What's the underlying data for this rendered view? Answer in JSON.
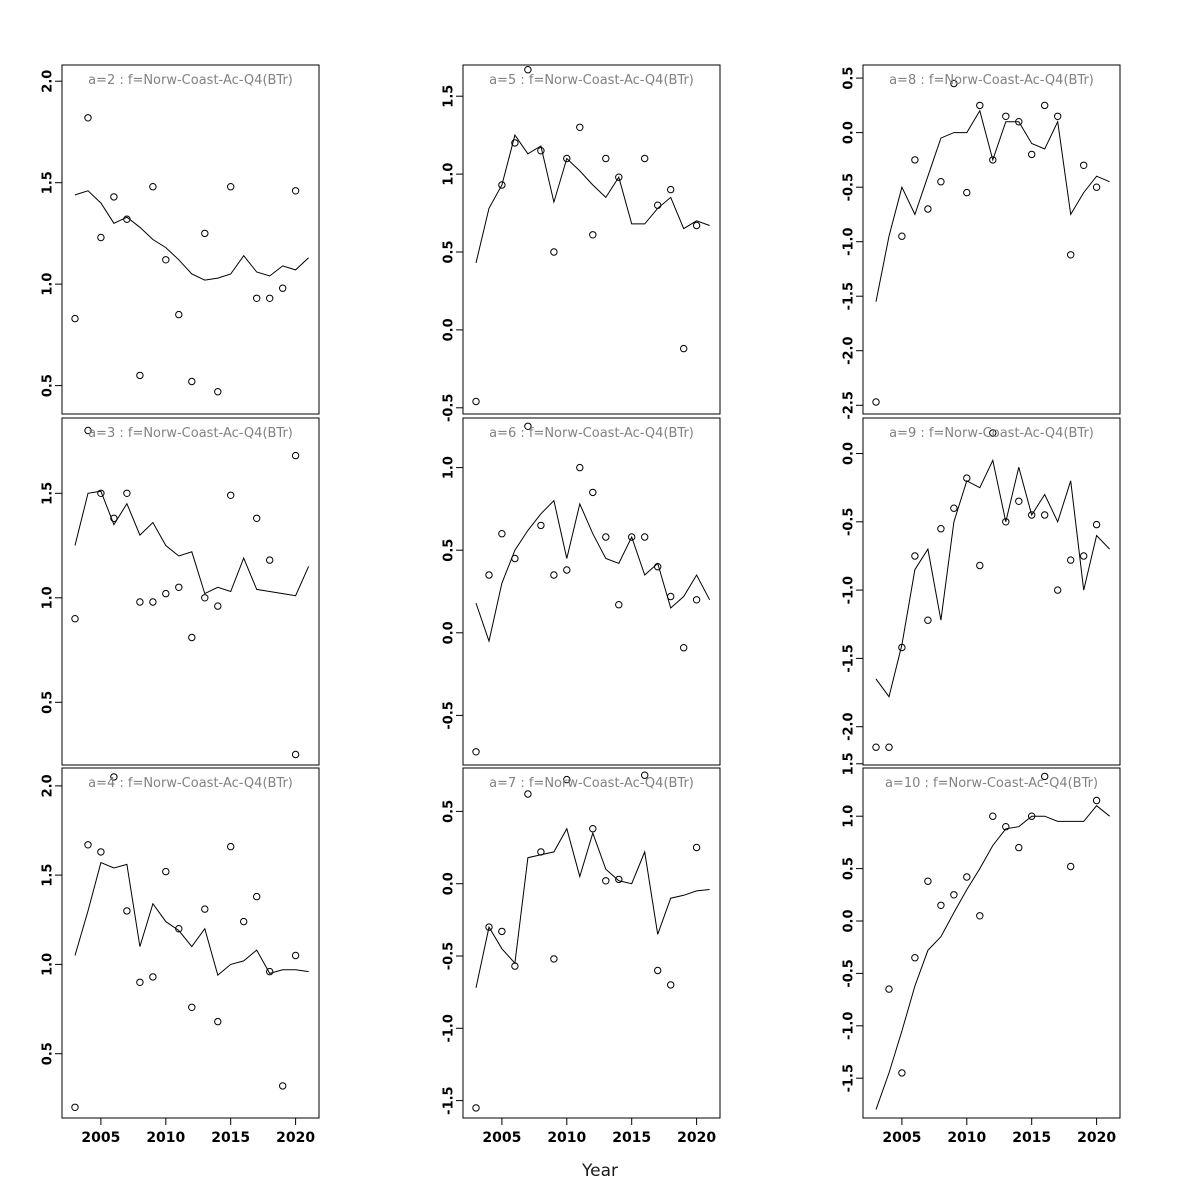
{
  "figure": {
    "xlabel": "Year",
    "x_ticks": [
      2005,
      2010,
      2015,
      2020
    ],
    "x_range": [
      2002.0,
      2021.8
    ],
    "line_years": [
      2003,
      2004,
      2005,
      2006,
      2007,
      2008,
      2009,
      2010,
      2011,
      2012,
      2013,
      2014,
      2015,
      2016,
      2017,
      2018,
      2019,
      2020,
      2021
    ],
    "grid": {
      "rows": 3,
      "cols": 3,
      "fill_order": "column-major"
    },
    "colors": {
      "line": "#000000",
      "point_stroke": "#000000",
      "title": "#828282",
      "border": "#000000"
    }
  },
  "chart_data": [
    {
      "id": "a2",
      "type": "scatter+line",
      "title": "a=2 : f=Norw-Coast-Ac-Q4(BTr)",
      "y_ticks": [
        0.5,
        1.0,
        1.5,
        2.0
      ],
      "y_range": [
        0.36,
        2.08
      ],
      "points": {
        "x": [
          2003,
          2004,
          2005,
          2006,
          2007,
          2008,
          2009,
          2010,
          2011,
          2012,
          2013,
          2014,
          2015,
          2017,
          2018,
          2019,
          2020
        ],
        "y": [
          0.83,
          1.82,
          1.23,
          1.43,
          1.32,
          0.55,
          1.48,
          1.12,
          0.85,
          0.52,
          1.25,
          0.47,
          1.48,
          0.93,
          0.93,
          0.98,
          1.46
        ]
      },
      "line": {
        "y": [
          1.44,
          1.46,
          1.4,
          1.3,
          1.33,
          1.28,
          1.22,
          1.18,
          1.12,
          1.05,
          1.02,
          1.03,
          1.05,
          1.14,
          1.06,
          1.04,
          1.09,
          1.07,
          1.13
        ]
      }
    },
    {
      "id": "a3",
      "type": "scatter+line",
      "title": "a=3 : f=Norw-Coast-Ac-Q4(BTr)",
      "y_ticks": [
        0.5,
        1.0,
        1.5
      ],
      "y_range": [
        0.2,
        1.86
      ],
      "points": {
        "x": [
          2003,
          2004,
          2005,
          2006,
          2007,
          2008,
          2009,
          2010,
          2011,
          2012,
          2013,
          2014,
          2015,
          2017,
          2018,
          2020,
          2020
        ],
        "y": [
          0.9,
          1.8,
          1.5,
          1.38,
          1.5,
          0.98,
          0.98,
          1.02,
          1.05,
          0.81,
          1.0,
          0.96,
          1.49,
          1.38,
          1.18,
          1.68,
          0.25
        ]
      },
      "line": {
        "y": [
          1.25,
          1.5,
          1.51,
          1.35,
          1.45,
          1.3,
          1.36,
          1.25,
          1.2,
          1.22,
          1.02,
          1.05,
          1.03,
          1.19,
          1.04,
          1.03,
          1.02,
          1.01,
          1.15
        ]
      }
    },
    {
      "id": "a4",
      "type": "scatter+line",
      "title": "a=4 : f=Norw-Coast-Ac-Q4(BTr)",
      "y_ticks": [
        0.5,
        1.0,
        1.5,
        2.0
      ],
      "y_range": [
        0.14,
        2.1
      ],
      "points": {
        "x": [
          2003,
          2004,
          2005,
          2006,
          2007,
          2008,
          2009,
          2010,
          2011,
          2012,
          2013,
          2014,
          2015,
          2016,
          2017,
          2018,
          2019,
          2020
        ],
        "y": [
          0.2,
          1.67,
          1.63,
          2.05,
          1.3,
          0.9,
          0.93,
          1.52,
          1.2,
          0.76,
          1.31,
          0.68,
          1.66,
          1.24,
          1.38,
          0.96,
          0.32,
          1.05
        ]
      },
      "line": {
        "y": [
          1.05,
          1.3,
          1.57,
          1.54,
          1.56,
          1.1,
          1.34,
          1.24,
          1.19,
          1.1,
          1.2,
          0.94,
          1.0,
          1.02,
          1.08,
          0.95,
          0.97,
          0.97,
          0.96
        ]
      }
    },
    {
      "id": "a5",
      "type": "scatter+line",
      "title": "a=5 : f=Norw-Coast-Ac-Q4(BTr)",
      "y_ticks": [
        -0.5,
        0.0,
        0.5,
        1.0,
        1.5
      ],
      "y_range": [
        -0.54,
        1.7
      ],
      "points": {
        "x": [
          2003,
          2005,
          2006,
          2007,
          2008,
          2009,
          2010,
          2011,
          2012,
          2013,
          2014,
          2016,
          2017,
          2018,
          2019,
          2020
        ],
        "y": [
          -0.46,
          0.93,
          1.2,
          1.67,
          1.15,
          0.5,
          1.1,
          1.3,
          0.61,
          1.1,
          0.98,
          1.1,
          0.8,
          0.9,
          -0.12,
          0.67
        ]
      },
      "line": {
        "y": [
          0.43,
          0.78,
          0.93,
          1.25,
          1.13,
          1.18,
          0.82,
          1.1,
          1.02,
          0.93,
          0.85,
          0.98,
          0.68,
          0.68,
          0.78,
          0.85,
          0.65,
          0.7,
          0.67
        ]
      }
    },
    {
      "id": "a6",
      "type": "scatter+line",
      "title": "a=6 : f=Norw-Coast-Ac-Q4(BTr)",
      "y_ticks": [
        -0.5,
        0.0,
        0.5,
        1.0
      ],
      "y_range": [
        -0.8,
        1.3
      ],
      "points": {
        "x": [
          2003,
          2004,
          2005,
          2006,
          2007,
          2008,
          2009,
          2010,
          2011,
          2012,
          2013,
          2014,
          2015,
          2016,
          2017,
          2018,
          2019,
          2020
        ],
        "y": [
          -0.72,
          0.35,
          0.6,
          0.45,
          1.25,
          0.65,
          0.35,
          0.38,
          1.0,
          0.85,
          0.58,
          0.17,
          0.58,
          0.58,
          0.4,
          0.22,
          -0.09,
          0.2
        ]
      },
      "line": {
        "y": [
          0.18,
          -0.05,
          0.3,
          0.5,
          0.62,
          0.72,
          0.8,
          0.45,
          0.78,
          0.6,
          0.45,
          0.42,
          0.58,
          0.35,
          0.42,
          0.15,
          0.22,
          0.35,
          0.2
        ]
      }
    },
    {
      "id": "a7",
      "type": "scatter+line",
      "title": "a=7 : f=Norw-Coast-Ac-Q4(BTr)",
      "y_ticks": [
        -1.5,
        -1.0,
        -0.5,
        0.0,
        0.5
      ],
      "y_range": [
        -1.62,
        0.8
      ],
      "points": {
        "x": [
          2003,
          2004,
          2005,
          2006,
          2007,
          2008,
          2009,
          2010,
          2012,
          2013,
          2014,
          2016,
          2017,
          2018,
          2020
        ],
        "y": [
          -1.55,
          -0.3,
          -0.33,
          -0.57,
          0.62,
          0.22,
          -0.52,
          0.72,
          0.38,
          0.02,
          0.03,
          0.75,
          -0.6,
          -0.7,
          0.25
        ]
      },
      "line": {
        "y": [
          -0.72,
          -0.3,
          -0.45,
          -0.55,
          0.18,
          0.2,
          0.22,
          0.38,
          0.05,
          0.35,
          0.1,
          0.02,
          0.0,
          0.22,
          -0.35,
          -0.1,
          -0.08,
          -0.05,
          -0.04
        ]
      }
    },
    {
      "id": "a8",
      "type": "scatter+line",
      "title": "a=8 : f=Norw-Coast-Ac-Q4(BTr)",
      "y_ticks": [
        -2.5,
        -2.0,
        -1.5,
        -1.0,
        -0.5,
        0.0,
        0.5
      ],
      "y_range": [
        -2.58,
        0.62
      ],
      "points": {
        "x": [
          2003,
          2005,
          2006,
          2007,
          2008,
          2009,
          2010,
          2011,
          2012,
          2013,
          2014,
          2015,
          2016,
          2017,
          2018,
          2019,
          2020
        ],
        "y": [
          -2.47,
          -0.95,
          -0.25,
          -0.7,
          -0.45,
          0.45,
          -0.55,
          0.25,
          -0.25,
          0.15,
          0.1,
          -0.2,
          0.25,
          0.15,
          -1.12,
          -0.3,
          -0.5
        ]
      },
      "line": {
        "y": [
          -1.55,
          -0.95,
          -0.5,
          -0.75,
          -0.4,
          -0.05,
          0.0,
          0.0,
          0.2,
          -0.25,
          0.1,
          0.1,
          -0.1,
          -0.15,
          0.1,
          -0.75,
          -0.55,
          -0.4,
          -0.45
        ]
      }
    },
    {
      "id": "a9",
      "type": "scatter+line",
      "title": "a=9 : f=Norw-Coast-Ac-Q4(BTr)",
      "y_ticks": [
        -2.0,
        -1.5,
        -1.0,
        -0.5,
        0.0
      ],
      "y_range": [
        -2.28,
        0.26
      ],
      "points": {
        "x": [
          2003,
          2004,
          2005,
          2006,
          2007,
          2008,
          2009,
          2010,
          2011,
          2012,
          2013,
          2014,
          2015,
          2016,
          2017,
          2018,
          2019,
          2020
        ],
        "y": [
          -2.15,
          -2.15,
          -1.42,
          -0.75,
          -1.22,
          -0.55,
          -0.4,
          -0.18,
          -0.82,
          0.15,
          -0.5,
          -0.35,
          -0.45,
          -0.45,
          -1.0,
          -0.78,
          -0.75,
          -0.52
        ]
      },
      "line": {
        "y": [
          -1.65,
          -1.78,
          -1.4,
          -0.85,
          -0.7,
          -1.22,
          -0.5,
          -0.2,
          -0.25,
          -0.05,
          -0.5,
          -0.1,
          -0.45,
          -0.3,
          -0.5,
          -0.2,
          -1.0,
          -0.6,
          -0.7
        ]
      }
    },
    {
      "id": "a10",
      "type": "scatter+line",
      "title": "a=10 : f=Norw-Coast-Ac-Q4(BTr)",
      "y_ticks": [
        -1.5,
        -1.0,
        -0.5,
        0.0,
        0.5,
        1.0,
        1.5
      ],
      "y_range": [
        -1.88,
        1.46
      ],
      "points": {
        "x": [
          2004,
          2005,
          2006,
          2007,
          2008,
          2009,
          2010,
          2011,
          2012,
          2013,
          2014,
          2015,
          2016,
          2018,
          2020
        ],
        "y": [
          -0.65,
          -1.45,
          -0.35,
          0.38,
          0.15,
          0.25,
          0.42,
          0.05,
          1.0,
          0.9,
          0.7,
          1.0,
          1.38,
          0.52,
          1.15
        ]
      },
      "line": {
        "y": [
          -1.8,
          -1.45,
          -1.05,
          -0.62,
          -0.28,
          -0.15,
          0.08,
          0.3,
          0.5,
          0.72,
          0.88,
          0.9,
          1.0,
          1.0,
          0.95,
          0.95,
          0.95,
          1.1,
          1.0
        ]
      }
    }
  ]
}
